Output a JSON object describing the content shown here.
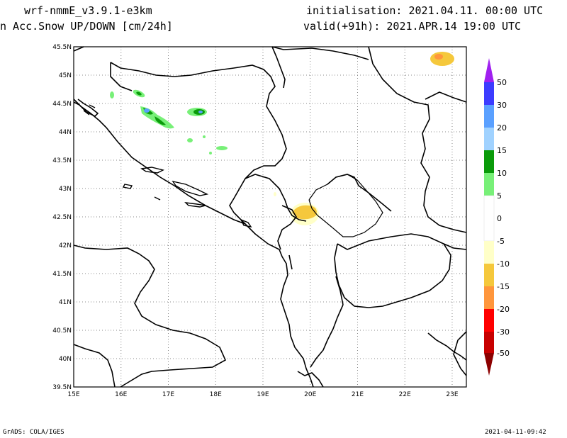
{
  "header": {
    "model": "wrf-nmmE_v3.9.1-e3km",
    "variable": "n Acc.Snow UP/DOWN [cm/24h]",
    "init": "initialisation: 2021.04.11.  00:00 UTC",
    "valid": "valid(+91h): 2021.APR.14 19:00 UTC"
  },
  "footer": {
    "left": "GrADS: COLA/IGES",
    "right": "2021-04-11-09:42"
  },
  "map": {
    "lon_labels": [
      "15E",
      "16E",
      "17E",
      "18E",
      "19E",
      "20E",
      "21E",
      "22E",
      "23E"
    ],
    "lat_labels": [
      "45.5N",
      "45N",
      "44.5N",
      "44N",
      "43.5N",
      "43N",
      "42.5N",
      "42N",
      "41.5N",
      "41N",
      "40.5N",
      "40N",
      "39.5N"
    ],
    "lon_range": [
      15,
      23.3
    ],
    "lat_range": [
      39.5,
      45.5
    ],
    "grid": "dotted"
  },
  "legend": {
    "labels": [
      "50",
      "30",
      "20",
      "15",
      "10",
      "5",
      "0",
      "-5",
      "-10",
      "-15",
      "-20",
      "-30",
      "-50"
    ],
    "colors": {
      "top_arrow": "#a020f0",
      "50_30": "#3c3cff",
      "30_20": "#5aa0ff",
      "20_15": "#a0d2ff",
      "15_10": "#0a9b0a",
      "10_5": "#78f078",
      "5_-5": "#ffffff",
      "-5_-10": "#ffffc8",
      "-10_-15": "#f5c83c",
      "-15_-20": "#ff963c",
      "-20_-30": "#ff0000",
      "-30_-50": "#c80000",
      "bottom_arrow": "#8c0000"
    }
  }
}
